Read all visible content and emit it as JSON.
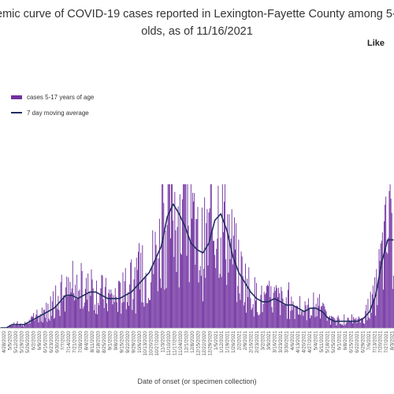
{
  "chart_data": {
    "type": "bar",
    "title_line1": "emic curve of COVID-19 cases reported in Lexington-Fayette County among 5-",
    "title_line2": "olds, as of 11/16/2021",
    "corner_label": "Like",
    "xlabel": "Date of onset (or specimen collection)",
    "legend": [
      "cases 5-17 years of age",
      "7 day moving average"
    ],
    "colors": {
      "bars": "#7030a0",
      "average": "#1f2f5e"
    },
    "grid": false,
    "legend_placement": "top-left",
    "date_range": [
      "4/28/2020",
      "8/3/2021"
    ],
    "x_tick_labels": [
      "4/28/2020",
      "5/5/2020",
      "5/12/2020",
      "5/19/2020",
      "5/26/2020",
      "6/2/2020",
      "6/9/2020",
      "6/16/2020",
      "6/23/2020",
      "6/30/2020",
      "7/7/2020",
      "7/14/2020",
      "7/21/2020",
      "7/28/2020",
      "8/4/2020",
      "8/11/2020",
      "8/18/2020",
      "8/25/2020",
      "9/1/2020",
      "9/8/2020",
      "9/15/2020",
      "9/22/2020",
      "9/29/2020",
      "10/6/2020",
      "10/13/2020",
      "10/20/2020",
      "10/27/2020",
      "11/3/2020",
      "11/10/2020",
      "11/17/2020",
      "11/24/2020",
      "12/1/2020",
      "12/8/2020",
      "12/15/2020",
      "12/22/2020",
      "12/29/2020",
      "1/5/2021",
      "1/12/2021",
      "1/19/2021",
      "1/26/2021",
      "2/2/2021",
      "2/9/2021",
      "2/16/2021",
      "2/23/2021",
      "3/2/2021",
      "3/9/2021",
      "3/16/2021",
      "3/23/2021",
      "3/30/2021",
      "4/6/2021",
      "4/13/2021",
      "4/20/2021",
      "4/27/2021",
      "5/4/2021",
      "5/11/2021",
      "5/18/2021",
      "5/25/2021",
      "6/1/2021",
      "6/8/2021",
      "6/15/2021",
      "6/22/2021",
      "6/29/2021",
      "7/6/2021",
      "7/13/2021",
      "7/20/2021",
      "7/27/2021",
      "8/3/2021"
    ],
    "weekly_average": [
      0,
      0,
      1,
      1,
      1,
      2,
      3,
      4,
      5,
      6,
      8,
      10,
      10,
      9,
      10,
      11,
      11,
      10,
      9,
      9,
      9,
      10,
      11,
      13,
      15,
      17,
      21,
      25,
      34,
      38,
      35,
      31,
      26,
      24,
      23,
      26,
      33,
      35,
      30,
      22,
      17,
      14,
      11,
      9,
      8,
      8,
      9,
      8,
      7,
      7,
      6,
      5,
      6,
      6,
      5,
      3,
      2,
      2,
      2,
      2,
      2,
      3,
      5,
      10,
      20,
      27,
      27
    ]
  }
}
